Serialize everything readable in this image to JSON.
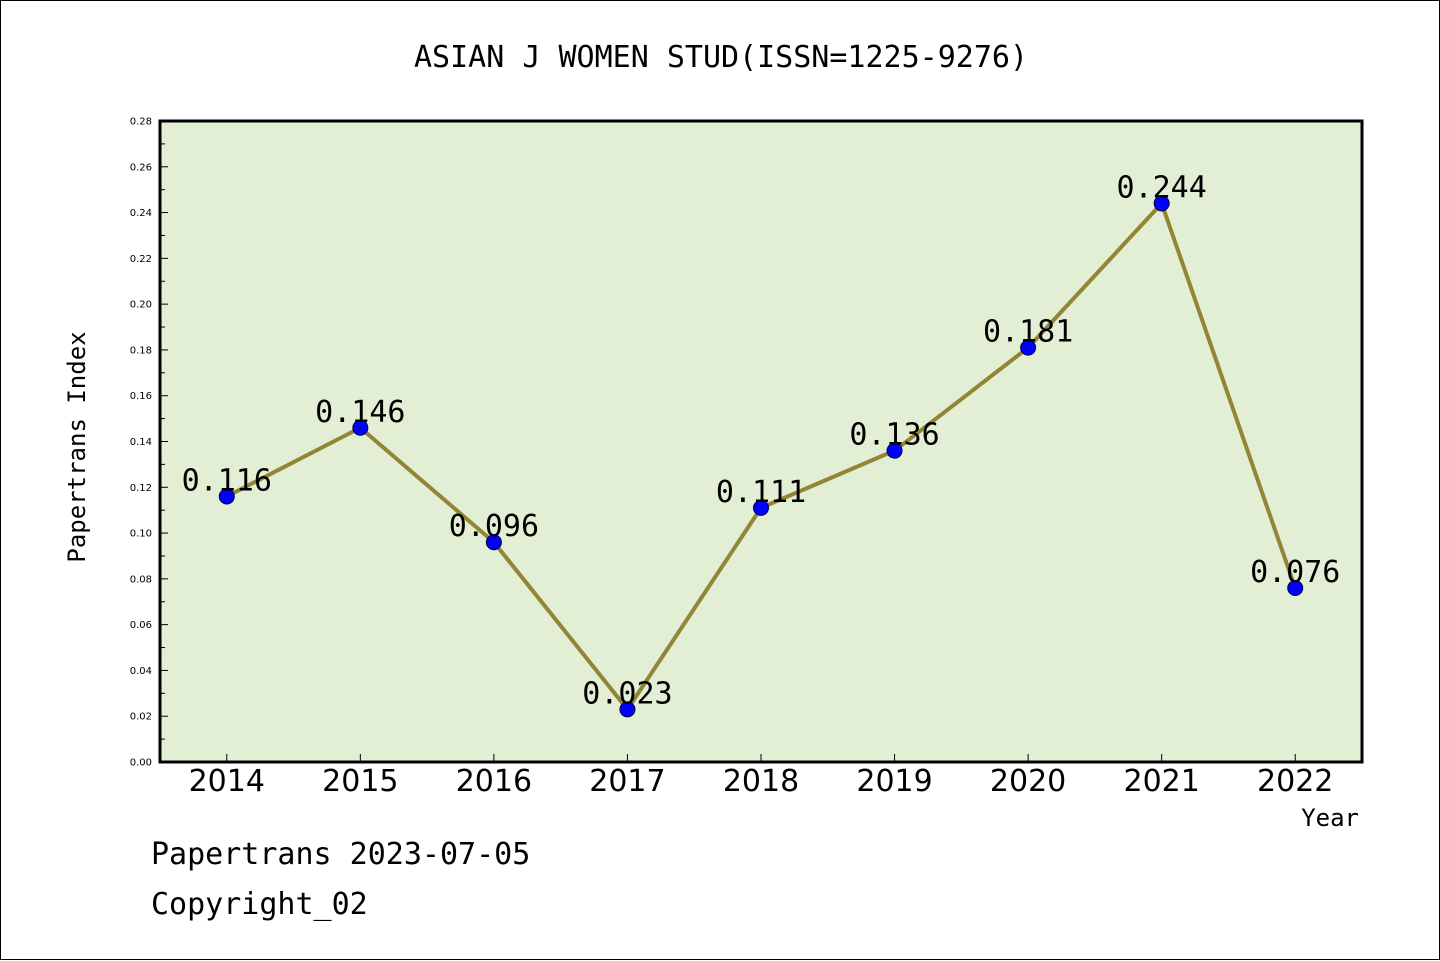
{
  "chart_data": {
    "type": "line",
    "title": "ASIAN J WOMEN STUD(ISSN=1225-9276)",
    "xlabel": "Year",
    "ylabel": "Papertrans Index",
    "categories": [
      "2014",
      "2015",
      "2016",
      "2017",
      "2018",
      "2019",
      "2020",
      "2021",
      "2022"
    ],
    "values": [
      0.116,
      0.146,
      0.096,
      0.023,
      0.111,
      0.136,
      0.181,
      0.244,
      0.076
    ],
    "value_labels": [
      "0.116",
      "0.146",
      "0.096",
      "0.023",
      "0.111",
      "0.136",
      "0.181",
      "0.244",
      "0.076"
    ],
    "ylim": [
      0,
      0.28
    ],
    "yticks": [
      "0.00",
      "0.02",
      "0.04",
      "0.06",
      "0.08",
      "0.10",
      "0.12",
      "0.14",
      "0.16",
      "0.18",
      "0.20",
      "0.22",
      "0.24",
      "0.26",
      "0.28"
    ],
    "grid": false,
    "colors": {
      "plot_background": "#e2efd5",
      "line": "#928536",
      "marker": "#0000ff"
    }
  },
  "footer": {
    "line1": "Papertrans 2023-07-05",
    "line2": "Copyright_02"
  }
}
